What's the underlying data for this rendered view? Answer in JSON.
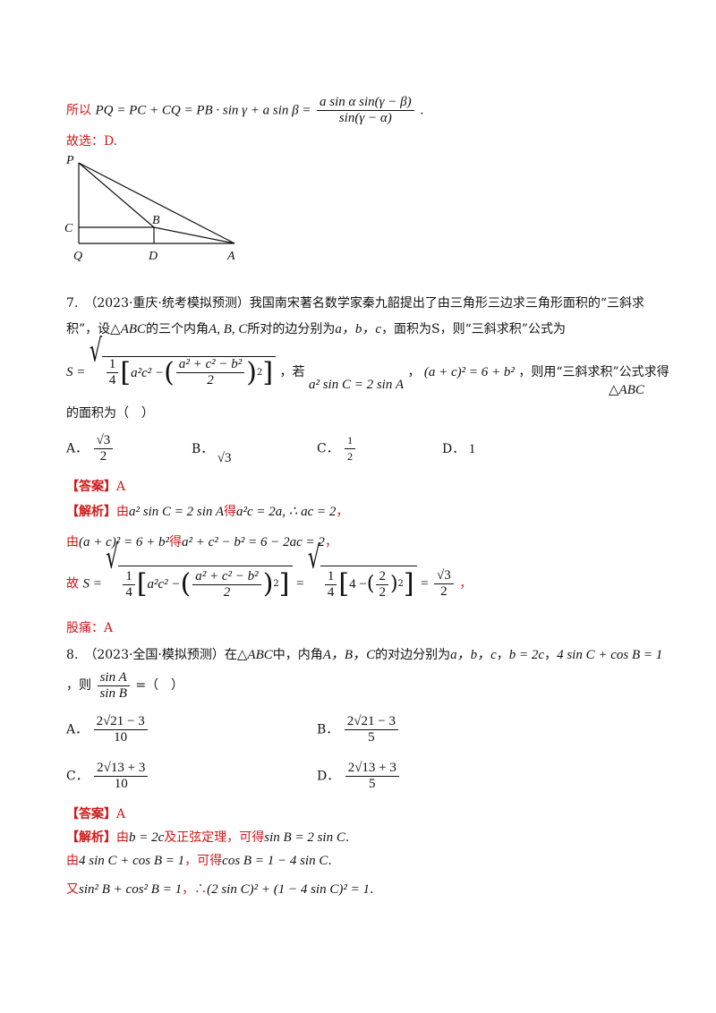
{
  "prev": {
    "prefix": "所以",
    "expr_left": "PQ = PC + CQ = PB · sin γ + a sin β =",
    "frac_num": "a sin α sin(γ − β)",
    "frac_den": "sin(γ − α)",
    "end": ".",
    "choice": "故选：D."
  },
  "figure": {
    "labels": {
      "P": "P",
      "C": "C",
      "Q": "Q",
      "B": "B",
      "D": "D",
      "A": "A"
    }
  },
  "q7": {
    "line1": "7.　（2023·重庆·统考模拟预测）我国南宋著名数学家秦九韶提出了由三角形三边求三角形面积的“三斜求",
    "line2a": "积”，设",
    "tri_abc": "△ABC",
    "line2b": "的三个内角",
    "angles": "A, B, C",
    "line2c": "所对的边分别为",
    "sides": "a，b，c",
    "line2d": "，面积为S，则“三斜求积”公式为",
    "formula_S": "S =",
    "quarter": "1/4",
    "inner": "a²c² −",
    "inner_num": "a² + c² − b²",
    "inner_den": "2",
    "comma_if": "，若",
    "cond1": "a² sin C = 2 sin A",
    "comma2": "，",
    "cond2": "(a + c)² = 6 + b²",
    "line3b": "，则用“三斜求积”公式求得",
    "tri_abc2": "△ABC",
    "line4": "的面积为（　）",
    "options": [
      {
        "label": "A．",
        "num": "√3",
        "den": "2"
      },
      {
        "label": "B．",
        "val": "√3"
      },
      {
        "label": "C．",
        "num": "1",
        "den": "2"
      },
      {
        "label": "D．",
        "val": "1"
      }
    ],
    "answer_tag": "【答案】",
    "answer": "A",
    "analysis_tag": "【解析】",
    "a1_pre": "由",
    "a1_cond": "a² sin C = 2 sin A",
    "a1_get": "得",
    "a1_res": "a²c = 2a, ∴ ac = 2",
    "a1_end": "，",
    "a2_pre": "由",
    "a2_cond": "(a + c)² = 6 + b²",
    "a2_get": "得",
    "a2_res": "a² + c² − b² = 6 − 2ac = 2",
    "a2_end": "，",
    "a3_pre": "故",
    "a3_S": "S =",
    "a3_eq": "=",
    "a3_four": "4 −",
    "a3_two": "2",
    "a3_res_num": "√3",
    "a3_res_den": "2",
    "a3_end": "，",
    "choice": "股痛：A"
  },
  "q8": {
    "line1a": "8.　（2023·全国·模拟预测）在",
    "tri": "△ABC",
    "line1b": "中，内角",
    "line1c": "A，B，C",
    "line1d": "的对边分别为",
    "line1e": "a，b，c",
    "line1f": "，",
    "cond1": "b = 2c",
    "line1g": "，",
    "cond2": "4 sin C + cos B = 1",
    "line2a": "，则",
    "frac_num": "sin A",
    "frac_den": "sin B",
    "line2b": "=（　）",
    "options": [
      {
        "label": "A．",
        "num": "2√21 − 3",
        "den": "10"
      },
      {
        "label": "B．",
        "num": "2√21 − 3",
        "den": "5"
      },
      {
        "label": "C．",
        "num": "2√13 + 3",
        "den": "10"
      },
      {
        "label": "D．",
        "num": "2√13 + 3",
        "den": "5"
      }
    ],
    "answer_tag": "【答案】",
    "answer": "A",
    "analysis_tag": "【解析】",
    "a1_pre": "由",
    "a1_cond": "b = 2c",
    "a1_mid": "及正弦定理，可得",
    "a1_res": "sin B = 2 sin C",
    "a1_end": ".",
    "a2_pre": "由",
    "a2_cond": "4 sin C + cos B = 1",
    "a2_mid": "，可得",
    "a2_res": "cos B = 1 − 4 sin C",
    "a2_end": ".",
    "a3_pre": "又",
    "a3_cond": "sin² B + cos² B = 1",
    "a3_mid": "，∴",
    "a3_res": "(2 sin C)² + (1 − 4 sin C)² = 1",
    "a3_end": "."
  }
}
